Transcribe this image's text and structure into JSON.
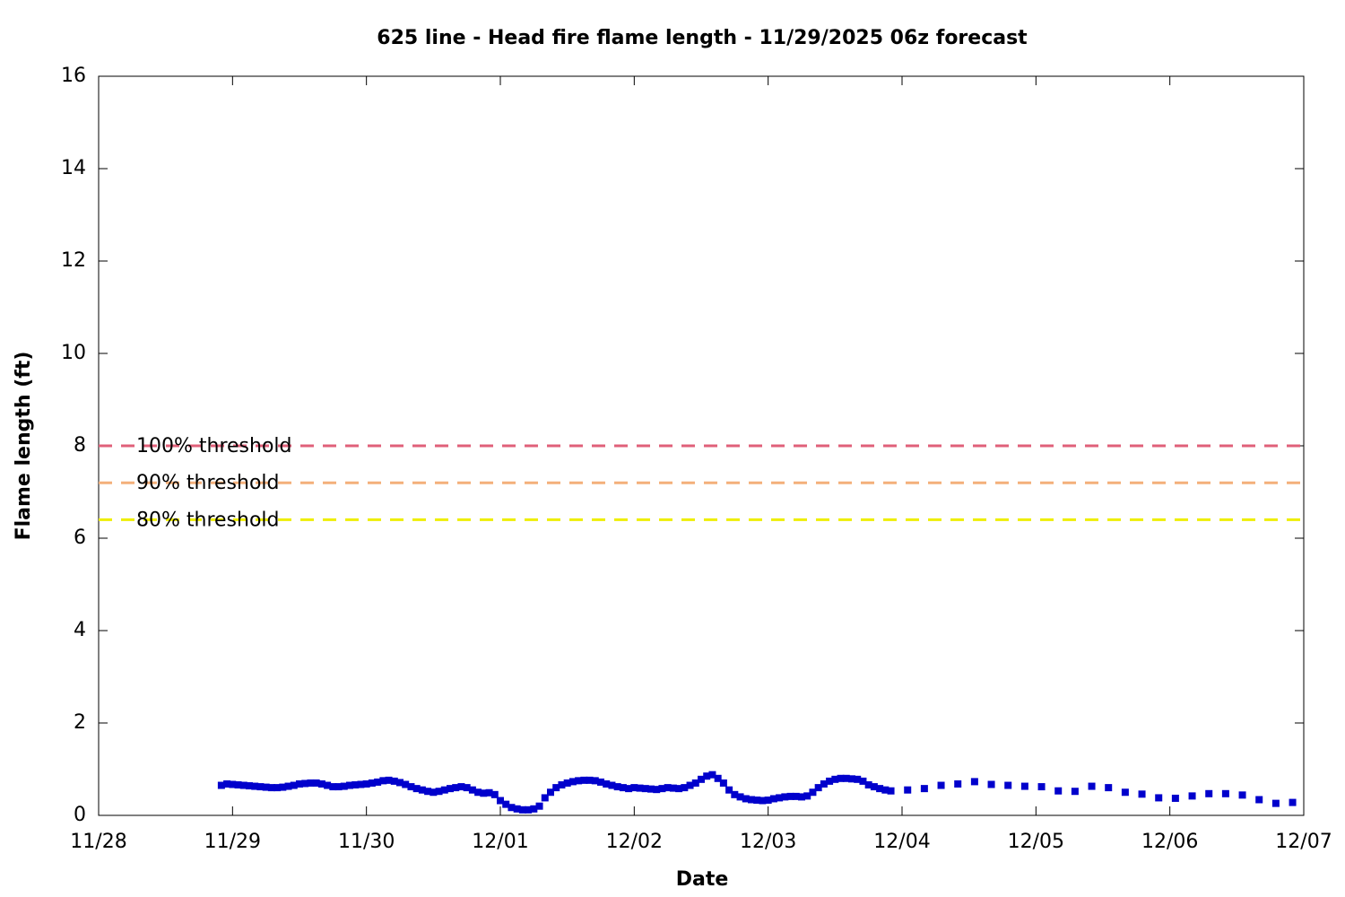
{
  "chart_data": {
    "type": "scatter",
    "title": "625 line - Head fire flame length - 11/29/2025 06z forecast",
    "x_label": "Date",
    "y_label": "Flame length (ft)",
    "xlim": [
      0,
      216
    ],
    "ylim": [
      0,
      16
    ],
    "xticks": [
      {
        "value": 0,
        "label": "11/28"
      },
      {
        "value": 24,
        "label": "11/29"
      },
      {
        "value": 48,
        "label": "11/30"
      },
      {
        "value": 72,
        "label": "12/01"
      },
      {
        "value": 96,
        "label": "12/02"
      },
      {
        "value": 120,
        "label": "12/03"
      },
      {
        "value": 144,
        "label": "12/04"
      },
      {
        "value": 168,
        "label": "12/05"
      },
      {
        "value": 192,
        "label": "12/06"
      },
      {
        "value": 216,
        "label": "12/07"
      }
    ],
    "yticks": [
      0,
      2,
      4,
      6,
      8,
      10,
      12,
      14,
      16
    ],
    "thresholds": [
      {
        "name": "100% threshold",
        "value": 8,
        "color": "#e0607a"
      },
      {
        "name": "90% threshold",
        "value": 7.2,
        "color": "#f4b07a"
      },
      {
        "name": "80% threshold",
        "value": 6.4,
        "color": "#eeee00"
      }
    ],
    "series": [
      {
        "color": "#0000cc",
        "x": [
          22,
          23,
          24,
          25,
          26,
          27,
          28,
          29,
          30,
          31,
          32,
          33,
          34,
          35,
          36,
          37,
          38,
          39,
          40,
          41,
          42,
          43,
          44,
          45,
          46,
          47,
          48,
          49,
          50,
          51,
          52,
          53,
          54,
          55,
          56,
          57,
          58,
          59,
          60,
          61,
          62,
          63,
          64,
          65,
          66,
          67,
          68,
          69,
          70,
          71,
          72,
          73,
          74,
          75,
          76,
          77,
          78,
          79,
          80,
          81,
          82,
          83,
          84,
          85,
          86,
          87,
          88,
          89,
          90,
          91,
          92,
          93,
          94,
          95,
          96,
          97,
          98,
          99,
          100,
          101,
          102,
          103,
          104,
          105,
          106,
          107,
          108,
          109,
          110,
          111,
          112,
          113,
          114,
          115,
          116,
          117,
          118,
          119,
          120,
          121,
          122,
          123,
          124,
          125,
          126,
          127,
          128,
          129,
          130,
          131,
          132,
          133,
          134,
          135,
          136,
          137,
          138,
          139,
          140,
          141,
          142,
          145,
          148,
          151,
          154,
          157,
          160,
          163,
          166,
          169,
          172,
          175,
          178,
          181,
          184,
          187,
          190,
          193,
          196,
          199,
          202,
          205,
          208,
          211,
          214
        ],
        "values": [
          0.65,
          0.68,
          0.67,
          0.66,
          0.65,
          0.64,
          0.63,
          0.62,
          0.61,
          0.6,
          0.6,
          0.61,
          0.63,
          0.65,
          0.68,
          0.69,
          0.7,
          0.7,
          0.68,
          0.65,
          0.62,
          0.62,
          0.63,
          0.65,
          0.66,
          0.67,
          0.68,
          0.7,
          0.72,
          0.75,
          0.76,
          0.74,
          0.71,
          0.67,
          0.62,
          0.58,
          0.55,
          0.52,
          0.5,
          0.52,
          0.55,
          0.58,
          0.6,
          0.62,
          0.6,
          0.55,
          0.5,
          0.48,
          0.49,
          0.45,
          0.32,
          0.24,
          0.17,
          0.14,
          0.12,
          0.12,
          0.14,
          0.2,
          0.38,
          0.5,
          0.6,
          0.66,
          0.7,
          0.73,
          0.75,
          0.76,
          0.76,
          0.75,
          0.72,
          0.68,
          0.65,
          0.62,
          0.6,
          0.58,
          0.6,
          0.59,
          0.58,
          0.57,
          0.56,
          0.58,
          0.6,
          0.59,
          0.58,
          0.6,
          0.65,
          0.7,
          0.78,
          0.85,
          0.88,
          0.8,
          0.7,
          0.55,
          0.45,
          0.4,
          0.36,
          0.34,
          0.33,
          0.32,
          0.33,
          0.36,
          0.38,
          0.4,
          0.41,
          0.41,
          0.4,
          0.42,
          0.5,
          0.6,
          0.68,
          0.74,
          0.78,
          0.8,
          0.8,
          0.79,
          0.78,
          0.74,
          0.66,
          0.62,
          0.58,
          0.55,
          0.53,
          0.55,
          0.58,
          0.65,
          0.68,
          0.73,
          0.67,
          0.65,
          0.63,
          0.62,
          0.53,
          0.52,
          0.63,
          0.6,
          0.5,
          0.46,
          0.38,
          0.37,
          0.42,
          0.47,
          0.47,
          0.44,
          0.34,
          0.26,
          0.28
        ]
      }
    ]
  }
}
